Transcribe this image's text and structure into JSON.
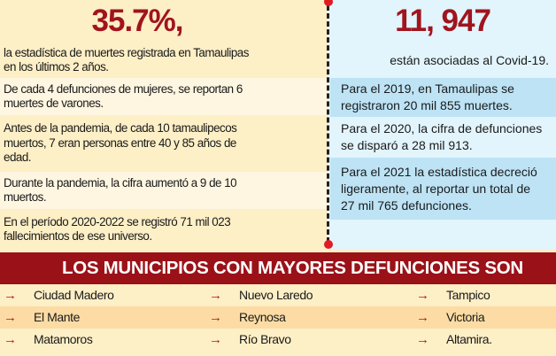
{
  "left": {
    "headline": "35.7%,",
    "subtitle": "la estadística de muertes registrada en Tamaulipas en los últimos 2 años.",
    "facts": [
      "De cada 4 defunciones de mujeres, se reportan 6 muertes de varones.",
      "Antes de la pandemia, de cada 10 tamaulipecos muertos, 7 eran personas entre 40 y 85 años de edad.",
      "Durante la pandemia, la cifra aumentó a 9 de 10 muertos.",
      "En el período 2020-2022 se registró 71 mil 023 fallecimientos de ese universo."
    ]
  },
  "right": {
    "headline": "11, 947",
    "subtitle": "están asociadas al Covid-19.",
    "facts": [
      "Para el 2019, en Tamaulipas se registraron 20 mil 855 muertes.",
      "Para el 2020, la cifra de defunciones se disparó a 28 mil 913.",
      "Para el 2021 la estadística decreció ligeramente, al reportar un total de 27 mil 765 defunciones."
    ]
  },
  "municipios": {
    "title": "LOS MUNICIPIOS CON MAYORES DEFUNCIONES SON",
    "arrow_icon": "→",
    "items": [
      "Ciudad Madero",
      "Nuevo Laredo",
      "Tampico",
      "El Mante",
      "Reynosa",
      "Victoria",
      "Matamoros",
      "Río Bravo",
      "Altamira."
    ]
  },
  "colors": {
    "accent_red": "#a0141e",
    "banner": "#9b1118",
    "beige": "#fdefc6",
    "light_blue": "#e2f4fc",
    "blue": "#bde3f5"
  }
}
